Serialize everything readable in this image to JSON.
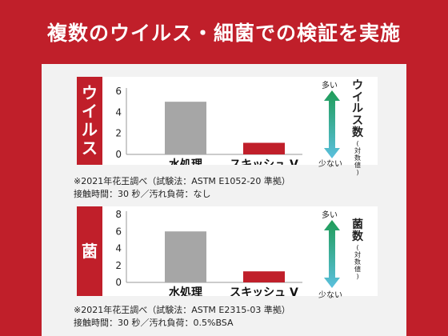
{
  "header": {
    "title": "複数のウイルス・細菌での検証を実施"
  },
  "colors": {
    "brand_red": "#c01f2a",
    "bar_gray": "#a6a6a6",
    "bar_red": "#c01f2a",
    "arrow_green": "#1f9c57",
    "arrow_blue": "#5bc0de"
  },
  "scale": {
    "high": "多い",
    "low": "少ない",
    "unit_note": "(対数値)"
  },
  "chart_data": [
    {
      "type": "bar",
      "label": "ウイルス",
      "metric": "ウイルス数",
      "categories": [
        "水処理",
        "スキッシュ V"
      ],
      "values": [
        5.0,
        1.1
      ],
      "ylim": [
        0,
        6
      ],
      "yticks": [
        "0",
        "2",
        "4",
        "6"
      ],
      "grid": false,
      "notes": [
        "※2021年花王調べ（試験法：ASTM E1052-20 準拠）",
        "接触時間：30 秒／汚れ負荷：なし"
      ]
    },
    {
      "type": "bar",
      "label": "菌",
      "metric": "菌数",
      "categories": [
        "水処理",
        "スキッシュ V"
      ],
      "values": [
        6.0,
        1.3
      ],
      "ylim": [
        0,
        8
      ],
      "yticks": [
        "0",
        "2",
        "4",
        "6",
        "8"
      ],
      "grid": false,
      "notes": [
        "※2021年花王調べ（試験法：ASTM E2315-03 準拠）",
        "接触時間：30 秒／汚れ負荷：0.5%BSA"
      ]
    }
  ]
}
